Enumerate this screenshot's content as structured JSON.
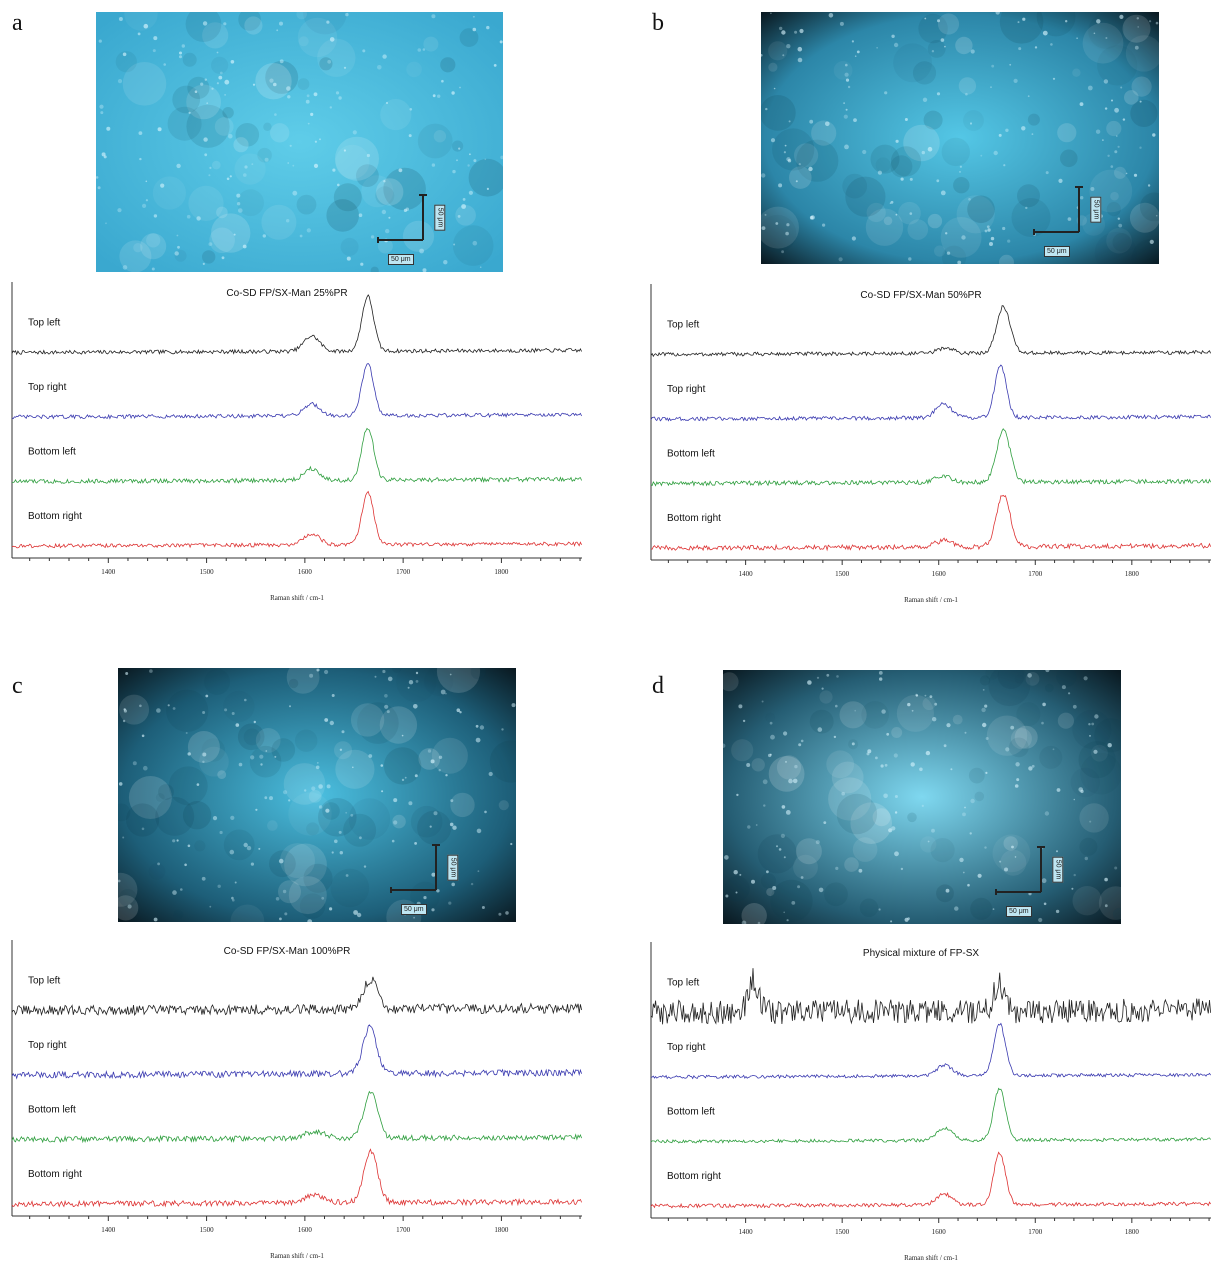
{
  "panels": [
    {
      "letter": "a",
      "micrograph": {
        "scale_h": "50 μm",
        "scale_v": "50 μm",
        "bright": "#5fcde9",
        "dark": "#3aa8cf",
        "vignette": false
      }
    },
    {
      "letter": "b",
      "micrograph": {
        "scale_h": "50 μm",
        "scale_v": "50 μm",
        "bright": "#54c7e6",
        "dark": "#2c86a8",
        "vignette": true
      }
    },
    {
      "letter": "c",
      "micrograph": {
        "scale_h": "50 μm",
        "scale_v": "50 μm",
        "bright": "#4bbfe0",
        "dark": "#1d5e78",
        "vignette": true
      }
    },
    {
      "letter": "d",
      "micrograph": {
        "scale_h": "50 μm",
        "scale_v": "50 μm",
        "bright": "#7fd8f0",
        "dark": "#255d73",
        "vignette": true
      }
    }
  ],
  "chart_data": [
    {
      "type": "line",
      "title": "Co-SD FP/SX-Man 25%PR",
      "xlabel": "Raman shift / cm-1",
      "xlim": [
        1302,
        1882
      ],
      "xticks": [
        1400,
        1500,
        1600,
        1700,
        1800
      ],
      "series": [
        {
          "name": "Top left",
          "color": "#222222",
          "peaks": [
            [
              1607,
              0.28,
              8
            ],
            [
              1664,
              1.0,
              6
            ]
          ],
          "noise": 0.035
        },
        {
          "name": "Top right",
          "color": "#3a3ab0",
          "peaks": [
            [
              1607,
              0.22,
              8
            ],
            [
              1664,
              0.95,
              6
            ]
          ],
          "noise": 0.035
        },
        {
          "name": "Bottom left",
          "color": "#2e9e3e",
          "peaks": [
            [
              1607,
              0.22,
              8
            ],
            [
              1664,
              0.95,
              6
            ]
          ],
          "noise": 0.04
        },
        {
          "name": "Bottom right",
          "color": "#dd3333",
          "peaks": [
            [
              1607,
              0.2,
              8
            ],
            [
              1664,
              0.95,
              6
            ]
          ],
          "noise": 0.035
        }
      ]
    },
    {
      "type": "line",
      "title": "Co-SD FP/SX-Man 50%PR",
      "xlabel": "Raman shift / cm-1",
      "xlim": [
        1302,
        1882
      ],
      "xticks": [
        1400,
        1500,
        1600,
        1700,
        1800
      ],
      "series": [
        {
          "name": "Top left",
          "color": "#222222",
          "peaks": [
            [
              1607,
              0.1,
              8
            ],
            [
              1667,
              0.85,
              7
            ]
          ],
          "noise": 0.035
        },
        {
          "name": "Top right",
          "color": "#3a3ab0",
          "peaks": [
            [
              1605,
              0.25,
              8
            ],
            [
              1664,
              0.95,
              6
            ]
          ],
          "noise": 0.035
        },
        {
          "name": "Bottom left",
          "color": "#2e9e3e",
          "peaks": [
            [
              1605,
              0.12,
              8
            ],
            [
              1667,
              0.95,
              7
            ]
          ],
          "noise": 0.04
        },
        {
          "name": "Bottom right",
          "color": "#dd3333",
          "peaks": [
            [
              1605,
              0.12,
              8
            ],
            [
              1667,
              0.95,
              7
            ]
          ],
          "noise": 0.045
        }
      ]
    },
    {
      "type": "line",
      "title": "Co-SD FP/SX-Man 100%PR",
      "xlabel": "Raman shift / cm-1",
      "xlim": [
        1302,
        1882
      ],
      "xticks": [
        1400,
        1500,
        1600,
        1700,
        1800
      ],
      "series": [
        {
          "name": "Top left",
          "color": "#222222",
          "peaks": [
            [
              1667,
              0.55,
              7
            ]
          ],
          "noise": 0.09
        },
        {
          "name": "Top right",
          "color": "#3a3ab0",
          "peaks": [
            [
              1666,
              0.85,
              7
            ]
          ],
          "noise": 0.06
        },
        {
          "name": "Bottom left",
          "color": "#2e9e3e",
          "peaks": [
            [
              1610,
              0.12,
              10
            ],
            [
              1667,
              0.85,
              7
            ]
          ],
          "noise": 0.05
        },
        {
          "name": "Bottom right",
          "color": "#dd3333",
          "peaks": [
            [
              1610,
              0.15,
              10
            ],
            [
              1667,
              0.95,
              7
            ]
          ],
          "noise": 0.05
        }
      ]
    },
    {
      "type": "line",
      "title": "Physical mixture of FP-SX",
      "xlabel": "Raman shift / cm-1",
      "xlim": [
        1302,
        1882
      ],
      "xticks": [
        1400,
        1500,
        1600,
        1700,
        1800
      ],
      "series": [
        {
          "name": "Top left",
          "color": "#222222",
          "peaks": [
            [
              1408,
              0.6,
              5
            ],
            [
              1662,
              0.5,
              5
            ]
          ],
          "noise": 0.22
        },
        {
          "name": "Top right",
          "color": "#3a3ab0",
          "peaks": [
            [
              1606,
              0.2,
              8
            ],
            [
              1663,
              0.95,
              6
            ]
          ],
          "noise": 0.03
        },
        {
          "name": "Bottom left",
          "color": "#2e9e3e",
          "peaks": [
            [
              1606,
              0.22,
              8
            ],
            [
              1663,
              0.95,
              6
            ]
          ],
          "noise": 0.03
        },
        {
          "name": "Bottom right",
          "color": "#dd3333",
          "peaks": [
            [
              1606,
              0.2,
              8
            ],
            [
              1663,
              0.95,
              6
            ]
          ],
          "noise": 0.035
        }
      ]
    }
  ]
}
